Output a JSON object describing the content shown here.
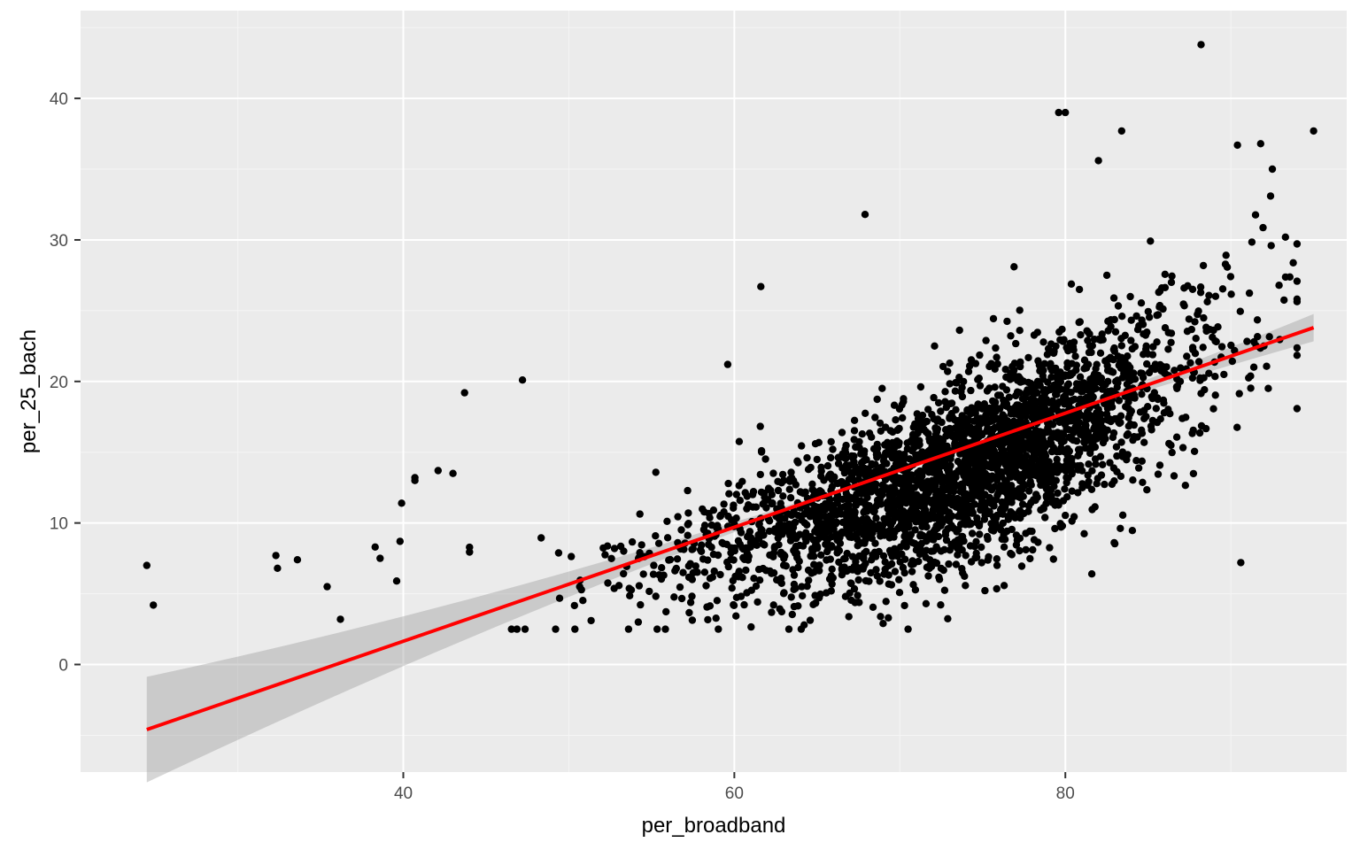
{
  "chart_data": {
    "type": "scatter",
    "title": "",
    "xlabel": "per_broadband",
    "ylabel": "per_25_bach",
    "xlim": [
      20.5,
      97
    ],
    "ylim": [
      -7.6,
      46.2
    ],
    "x_ticks": [
      40,
      60,
      80
    ],
    "y_ticks": [
      0,
      10,
      20,
      30,
      40
    ],
    "x_tick_labels": [
      "40",
      "60",
      "80"
    ],
    "y_tick_labels": [
      "0",
      "10",
      "20",
      "30",
      "40"
    ],
    "x_minor_ticks": [
      30,
      50,
      70,
      90
    ],
    "y_minor_ticks": [
      -5,
      5,
      15,
      25,
      35,
      45
    ],
    "grid": true,
    "legend": "none",
    "point_count_estimate": 3100,
    "point_cloud": {
      "x_center": 72,
      "x_spread": 8.5,
      "x_min": 24.5,
      "x_max": 95,
      "y_noise_sd": 3.6
    },
    "highlighted_points": [
      {
        "x": 24.5,
        "y": 7.0
      },
      {
        "x": 24.9,
        "y": 4.2
      },
      {
        "x": 32.3,
        "y": 7.7
      },
      {
        "x": 32.4,
        "y": 6.8
      },
      {
        "x": 33.6,
        "y": 7.4
      },
      {
        "x": 35.4,
        "y": 5.5
      },
      {
        "x": 36.2,
        "y": 3.2
      },
      {
        "x": 38.3,
        "y": 8.3
      },
      {
        "x": 38.6,
        "y": 7.5
      },
      {
        "x": 39.6,
        "y": 5.9
      },
      {
        "x": 39.8,
        "y": 8.7
      },
      {
        "x": 39.9,
        "y": 11.4
      },
      {
        "x": 40.7,
        "y": 13.2
      },
      {
        "x": 40.7,
        "y": 13.0
      },
      {
        "x": 42.1,
        "y": 13.7
      },
      {
        "x": 43.0,
        "y": 13.5
      },
      {
        "x": 43.7,
        "y": 19.2
      },
      {
        "x": 47.2,
        "y": 20.1
      },
      {
        "x": 49.2,
        "y": 2.5
      },
      {
        "x": 54.2,
        "y": 3.0
      },
      {
        "x": 59.6,
        "y": 21.2
      },
      {
        "x": 61.6,
        "y": 26.7
      },
      {
        "x": 67.9,
        "y": 31.8
      },
      {
        "x": 76.9,
        "y": 28.1
      },
      {
        "x": 79.6,
        "y": 39.0
      },
      {
        "x": 80.0,
        "y": 39.0
      },
      {
        "x": 81.6,
        "y": 6.4
      },
      {
        "x": 82.0,
        "y": 35.6
      },
      {
        "x": 83.4,
        "y": 37.7
      },
      {
        "x": 88.2,
        "y": 43.8
      },
      {
        "x": 90.4,
        "y": 36.7
      },
      {
        "x": 91.8,
        "y": 36.8
      },
      {
        "x": 92.4,
        "y": 33.1
      },
      {
        "x": 93.3,
        "y": 30.2
      },
      {
        "x": 95.0,
        "y": 37.7
      },
      {
        "x": 90.6,
        "y": 7.2
      },
      {
        "x": 91.4,
        "y": 22.8
      },
      {
        "x": 92.0,
        "y": 22.5
      }
    ],
    "series": [
      {
        "type": "scatter",
        "color": "#000000"
      },
      {
        "type": "line",
        "method": "linear fit",
        "color": "#ff0000",
        "x": [
          24.5,
          95.0
        ],
        "y": [
          -4.6,
          23.8
        ],
        "confidence_band": true,
        "band_color": "#999999"
      }
    ],
    "colors": {
      "panel_background": "#ebebeb",
      "grid_major": "#ffffff",
      "grid_minor": "#f5f5f5",
      "points": "#000000",
      "fit_line": "#ff0000"
    }
  }
}
